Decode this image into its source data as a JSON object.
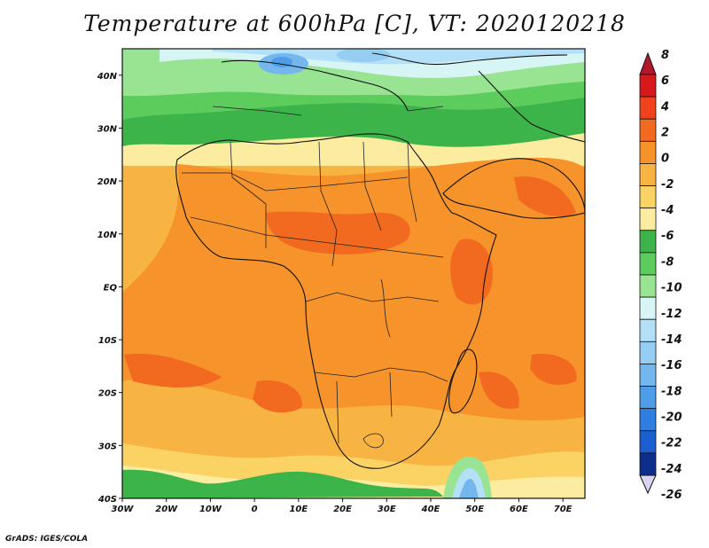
{
  "title": "Temperature at 600hPa [C], VT: 2020120218",
  "footer": "GrADS: IGES/COLA",
  "map": {
    "lon_range": [
      -30,
      75
    ],
    "lat_range": [
      -40,
      45
    ],
    "lon_ticks": [
      "30W",
      "20W",
      "10W",
      "0",
      "10E",
      "20E",
      "30E",
      "40E",
      "50E",
      "60E",
      "70E"
    ],
    "lat_ticks": [
      "40S",
      "30S",
      "20S",
      "10S",
      "EQ",
      "10N",
      "20N",
      "30N",
      "40N"
    ]
  },
  "colorbar": {
    "levels": [
      "8",
      "6",
      "4",
      "2",
      "0",
      "-2",
      "-4",
      "-6",
      "-8",
      "-10",
      "-12",
      "-14",
      "-16",
      "-18",
      "-20",
      "-22",
      "-24",
      "-26"
    ],
    "colors": [
      "#d7191c",
      "#f0421c",
      "#f26a20",
      "#f6932b",
      "#f8b443",
      "#fbd365",
      "#fcec9f",
      "#3cb44a",
      "#5ccc5c",
      "#98e493",
      "#d7f5f4",
      "#b3e0f7",
      "#95cdf3",
      "#74b7ef",
      "#4f9ce9",
      "#2f7fe0",
      "#1b5ed0",
      "#0d2e8a"
    ],
    "top_triangle_color": "#b2182b",
    "bottom_triangle_color": "#d9d4f0"
  },
  "map_colors": {
    "orange_dark": "#f26a20",
    "orange": "#f6932b",
    "orange_light": "#f8b443",
    "yellow": "#fbd365",
    "pale_yellow": "#fcec9f",
    "green": "#3cb44a",
    "light_green": "#5ccc5c",
    "pale_green": "#98e493",
    "pale_cyan": "#d7f5f4",
    "light_blue": "#b3e0f7",
    "blue": "#74b7ef",
    "dark_blue": "#4f9ce9"
  }
}
